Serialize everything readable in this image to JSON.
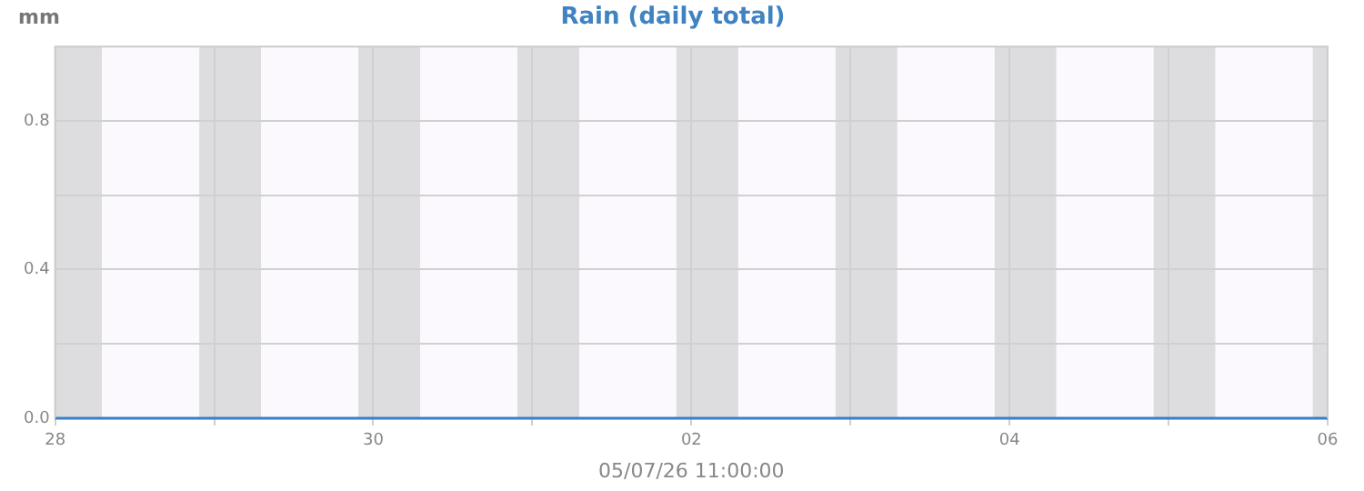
{
  "chart_data": {
    "type": "line",
    "title": "Rain (daily total)",
    "xlabel": "05/07/26 11:00:00",
    "ylabel": "mm",
    "x": [
      "--04-28",
      "--04-29",
      "--04-30",
      "--05-01",
      "--05-02",
      "--05-03",
      "--05-04",
      "--05-05",
      "--05-06"
    ],
    "series": [
      {
        "color": "#3a7fc1",
        "values": [
          0,
          0,
          0,
          0,
          0,
          0,
          0,
          0,
          0
        ]
      }
    ],
    "xlim": [
      "--04-28",
      "--05-06"
    ],
    "xticks": [
      {
        "value": "--04-28",
        "label": "28"
      },
      {
        "value": "--04-29",
        "label": null
      },
      {
        "value": "--04-30",
        "label": "30"
      },
      {
        "value": "--05-01",
        "label": null
      },
      {
        "value": "--05-02",
        "label": "02"
      },
      {
        "value": "--05-03",
        "label": null
      },
      {
        "value": "--05-04",
        "label": "04"
      },
      {
        "value": "--05-05",
        "label": null
      },
      {
        "value": "--05-06",
        "label": "06"
      }
    ],
    "ylim": [
      0,
      1
    ],
    "yticks": [
      {
        "value": 0,
        "label": "0.0"
      },
      {
        "value": 0.2,
        "label": null
      },
      {
        "value": 0.4,
        "label": "0.4"
      },
      {
        "value": 0.6,
        "label": null
      },
      {
        "value": 0.8,
        "label": "0.8"
      }
    ],
    "grid": true,
    "legend": false,
    "marker": "none",
    "line_style": "solid",
    "bands": [
      {
        "axis": "x",
        "from": "--04-28T00:00",
        "to": "--04-28T07:05",
        "color": "#dddde0"
      },
      {
        "axis": "x",
        "from": "--04-28T07:05",
        "to": "--04-28T21:45",
        "color": "#fbf8fe"
      },
      {
        "axis": "x",
        "from": "--04-28T21:45",
        "to": "--04-29T07:05",
        "color": "#dddde0"
      },
      {
        "axis": "x",
        "from": "--04-29T07:05",
        "to": "--04-29T21:45",
        "color": "#fbf8fe"
      },
      {
        "axis": "x",
        "from": "--04-29T21:45",
        "to": "--04-30T07:05",
        "color": "#dddde0"
      },
      {
        "axis": "x",
        "from": "--04-30T07:05",
        "to": "--04-30T21:45",
        "color": "#fbf8fe"
      },
      {
        "axis": "x",
        "from": "--04-30T21:45",
        "to": "--05-01T07:05",
        "color": "#dddde0"
      },
      {
        "axis": "x",
        "from": "--05-01T07:05",
        "to": "--05-01T21:45",
        "color": "#fbf8fe"
      },
      {
        "axis": "x",
        "from": "--05-01T21:45",
        "to": "--05-02T07:05",
        "color": "#dddde0"
      },
      {
        "axis": "x",
        "from": "--05-02T07:05",
        "to": "--05-02T21:45",
        "color": "#fbf8fe"
      },
      {
        "axis": "x",
        "from": "--05-02T21:45",
        "to": "--05-03T07:05",
        "color": "#dddde0"
      },
      {
        "axis": "x",
        "from": "--05-03T07:05",
        "to": "--05-03T21:45",
        "color": "#fbf8fe"
      },
      {
        "axis": "x",
        "from": "--05-03T21:45",
        "to": "--05-04T07:05",
        "color": "#dddde0"
      },
      {
        "axis": "x",
        "from": "--05-04T07:05",
        "to": "--05-04T21:45",
        "color": "#fbf8fe"
      },
      {
        "axis": "x",
        "from": "--05-04T21:45",
        "to": "--05-05T07:05",
        "color": "#dddde0"
      },
      {
        "axis": "x",
        "from": "--05-05T07:05",
        "to": "--05-05T21:45",
        "color": "#fbf8fe"
      },
      {
        "axis": "x",
        "from": "--05-05T21:45",
        "to": "--05-06T00:00",
        "color": "#dddde0"
      }
    ]
  }
}
